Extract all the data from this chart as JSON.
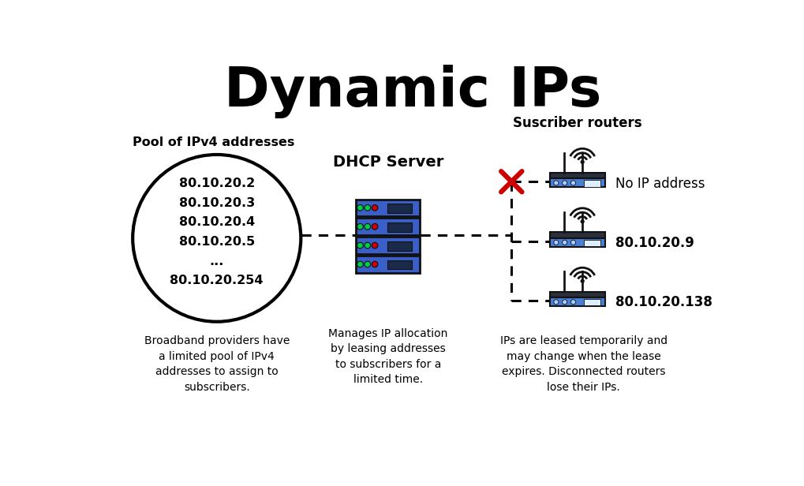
{
  "title": "Dynamic IPs",
  "title_fontsize": 50,
  "title_fontweight": "bold",
  "bg_color": "#ffffff",
  "pool_label": "Pool of IPv4 addresses",
  "pool_ips": [
    "80.10.20.2",
    "80.10.20.3",
    "80.10.20.4",
    "80.10.20.5",
    "...",
    "80.10.20.254"
  ],
  "pool_note": "Broadband providers have\na limited pool of IPv4\naddresses to assign to\nsubscribers.",
  "dhcp_label": "DHCP Server",
  "dhcp_note": "Manages IP allocation\nby leasing addresses\nto subscribers for a\nlimited time.",
  "subscriber_label": "Suscriber routers",
  "router_labels": [
    "No IP address",
    "80.10.20.9",
    "80.10.20.138"
  ],
  "subscriber_note": "IPs are leased temporarily and\nmay change when the lease\nexpires. Disconnected routers\nlose their IPs.",
  "text_color": "#000000",
  "circle_color": "#000000",
  "dashed_line_color": "#000000",
  "server_body": "#3a5fc8",
  "server_dark": "#111111",
  "server_light": "#5a7fdf",
  "router_body_top": "#2a2f3a",
  "router_body_bottom": "#4a7fd4",
  "router_dark": "#111111",
  "cross_color": "#cc0000",
  "dot_green": "#00cc44",
  "dot_red": "#cc0000",
  "dot_blue": "#aabbff"
}
